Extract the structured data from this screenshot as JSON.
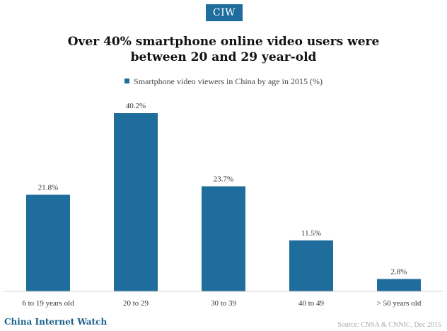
{
  "logo": {
    "text": "CIW"
  },
  "chart_data": {
    "type": "bar",
    "title": "Over 40% smartphone online video users were between 20 and 29 year-old",
    "title_lines": [
      "Over 40% smartphone online video users were",
      "between 20 and 29 year-old"
    ],
    "categories": [
      "6 to 19 years old",
      "20 to 29",
      "30 to 39",
      "40 to 49",
      "> 50 years old"
    ],
    "series": [
      {
        "name": "Smartphone video viewers in China by age in 2015 (%)",
        "values": [
          21.8,
          40.2,
          23.7,
          11.5,
          2.8
        ],
        "color": "#1f6d9c"
      }
    ],
    "data_labels": [
      "21.8%",
      "40.2%",
      "23.7%",
      "11.5%",
      "2.8%"
    ],
    "ylim": [
      0,
      40.2
    ],
    "grid": false,
    "legend_position": "top-center"
  },
  "footer": {
    "brand": "China Internet Watch",
    "source": "Source: CNSA & CNNIC, Dec 2015"
  },
  "colors": {
    "accent": "#1f6d9c",
    "brand_text": "#1a5f8c"
  }
}
